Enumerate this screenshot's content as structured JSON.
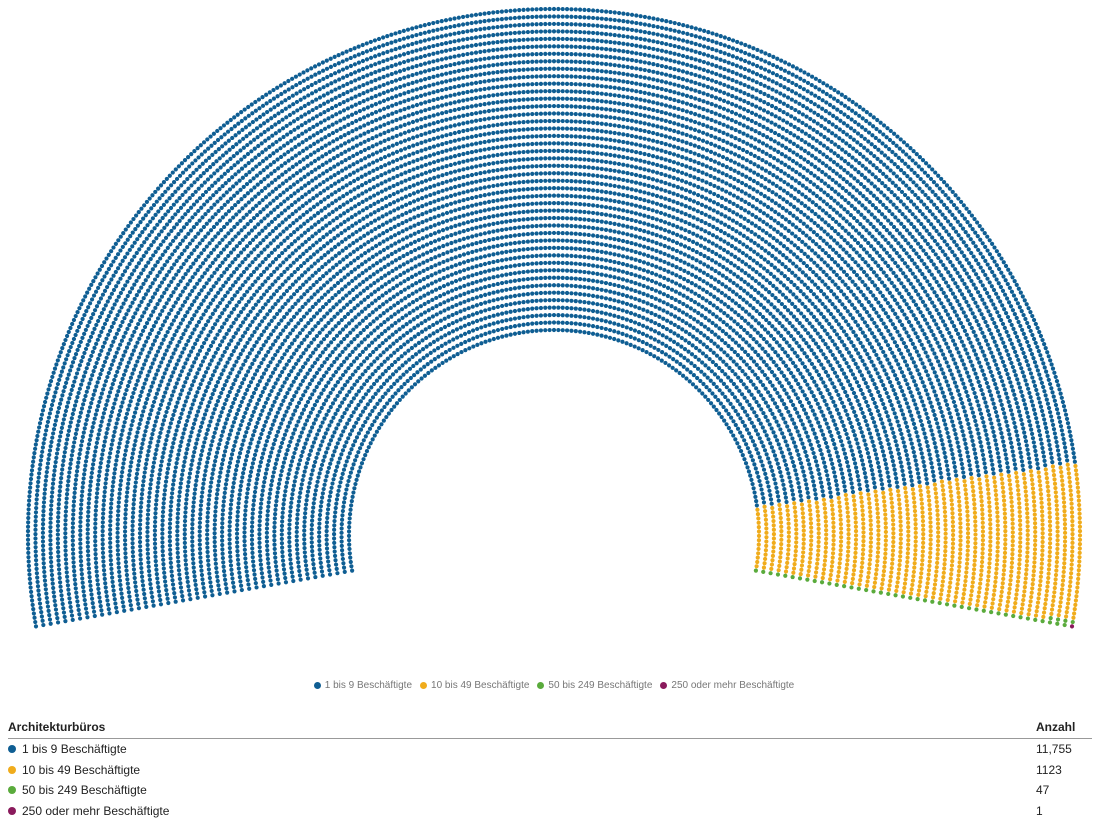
{
  "chart_data": {
    "type": "parliament",
    "categories": [
      "1 bis 9 Beschäftigte",
      "10 bis 49 Beschäftigte",
      "50 bis 249 Beschäftigte",
      "250 oder mehr Beschäftigte"
    ],
    "values": [
      11755,
      1123,
      47,
      1
    ],
    "colors": [
      "#0f5e93",
      "#f0ac1c",
      "#5aab3c",
      "#8a1a5c"
    ],
    "value_labels": [
      "11,755",
      "1123",
      "47",
      "1"
    ],
    "legend": {
      "placement": "bottom-center",
      "items": [
        {
          "label": "1 bis 9 Beschäftigte",
          "color": "#0f5e93"
        },
        {
          "label": "10 bis 49 Beschäftigte",
          "color": "#f0ac1c"
        },
        {
          "label": "50 bis 249 Beschäftigte",
          "color": "#5aab3c"
        },
        {
          "label": "250 oder mehr Beschäftigte",
          "color": "#8a1a5c"
        }
      ]
    }
  },
  "table": {
    "header_label": "Architekturbüros",
    "header_value": "Anzahl",
    "rows": [
      {
        "label": "1 bis 9 Beschäftigte",
        "value": "11,755",
        "color": "#0f5e93"
      },
      {
        "label": "10 bis 49 Beschäftigte",
        "value": "1123",
        "color": "#f0ac1c"
      },
      {
        "label": "50 bis 249 Beschäftigte",
        "value": "47",
        "color": "#5aab3c"
      },
      {
        "label": "250 oder mehr Beschäftigte",
        "value": "1",
        "color": "#8a1a5c"
      }
    ]
  }
}
